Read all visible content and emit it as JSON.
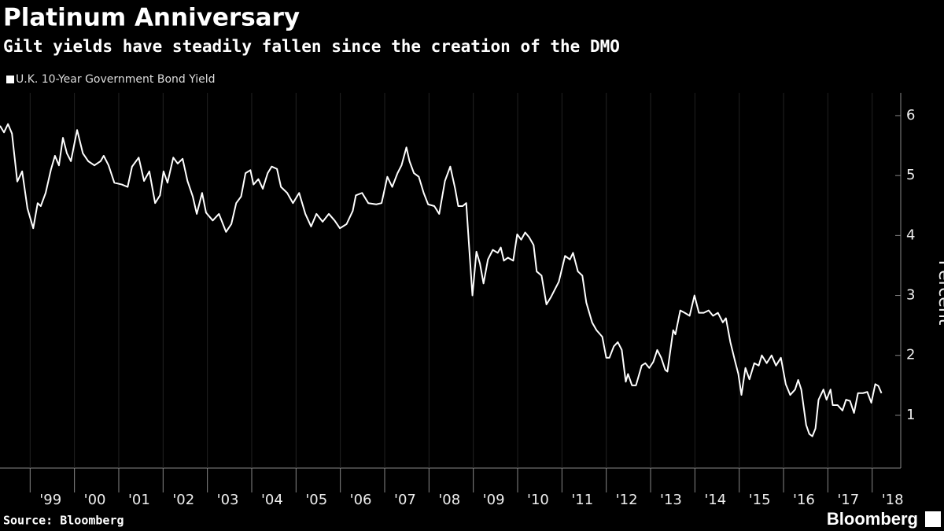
{
  "chart_data": {
    "type": "line",
    "title": "Platinum Anniversary",
    "subtitle": "Gilt yields have steadily fallen since the creation of the DMO",
    "y_label": "Percent",
    "source": "Source: Bloomberg",
    "brand": "Bloomberg",
    "grid": true,
    "xlim": [
      1998.32,
      2018.52
    ],
    "ylim": [
      0.12,
      6.38
    ],
    "yticks": [
      1,
      2,
      3,
      4,
      5,
      6
    ],
    "xticks": [
      {
        "value": 1999,
        "label": "'99"
      },
      {
        "value": 2000,
        "label": "'00"
      },
      {
        "value": 2001,
        "label": "'01"
      },
      {
        "value": 2002,
        "label": "'02"
      },
      {
        "value": 2003,
        "label": "'03"
      },
      {
        "value": 2004,
        "label": "'04"
      },
      {
        "value": 2005,
        "label": "'05"
      },
      {
        "value": 2006,
        "label": "'06"
      },
      {
        "value": 2007,
        "label": "'07"
      },
      {
        "value": 2008,
        "label": "'08"
      },
      {
        "value": 2009,
        "label": "'09"
      },
      {
        "value": 2010,
        "label": "'10"
      },
      {
        "value": 2011,
        "label": "'11"
      },
      {
        "value": 2012,
        "label": "'12"
      },
      {
        "value": 2013,
        "label": "'13"
      },
      {
        "value": 2014,
        "label": "'14"
      },
      {
        "value": 2015,
        "label": "'15"
      },
      {
        "value": 2016,
        "label": "'16"
      },
      {
        "value": 2017,
        "label": "'17"
      },
      {
        "value": 2018,
        "label": "'18"
      }
    ],
    "x": [
      1998.32,
      1998.41,
      1998.5,
      1998.59,
      1998.71,
      1998.82,
      1998.94,
      1999.07,
      1999.17,
      1999.24,
      1999.35,
      1999.47,
      1999.56,
      1999.65,
      1999.74,
      1999.83,
      1999.92,
      2000.06,
      2000.19,
      2000.31,
      2000.45,
      2000.59,
      2000.66,
      2000.77,
      2000.9,
      2001.07,
      2001.2,
      2001.3,
      2001.45,
      2001.57,
      2001.69,
      2001.82,
      2001.93,
      2002.01,
      2002.1,
      2002.23,
      2002.33,
      2002.44,
      2002.55,
      2002.67,
      2002.76,
      2002.88,
      2002.97,
      2003.12,
      2003.26,
      2003.42,
      2003.54,
      2003.65,
      2003.76,
      2003.86,
      2003.97,
      2004.04,
      2004.15,
      2004.25,
      2004.36,
      2004.45,
      2004.57,
      2004.66,
      2004.8,
      2004.93,
      2005.07,
      2005.21,
      2005.34,
      2005.46,
      2005.6,
      2005.74,
      2005.87,
      2005.99,
      2006.14,
      2006.28,
      2006.35,
      2006.49,
      2006.63,
      2006.81,
      2006.93,
      2007.06,
      2007.17,
      2007.29,
      2007.38,
      2007.49,
      2007.56,
      2007.66,
      2007.77,
      2007.88,
      2007.98,
      2008.12,
      2008.23,
      2008.36,
      2008.48,
      2008.59,
      2008.66,
      2008.76,
      2008.84,
      2008.91,
      2008.98,
      2009.07,
      2009.15,
      2009.23,
      2009.33,
      2009.44,
      2009.55,
      2009.62,
      2009.69,
      2009.78,
      2009.9,
      2009.99,
      2010.08,
      2010.17,
      2010.26,
      2010.36,
      2010.43,
      2010.54,
      2010.65,
      2010.75,
      2010.93,
      2011.07,
      2011.18,
      2011.25,
      2011.36,
      2011.46,
      2011.55,
      2011.68,
      2011.78,
      2011.91,
      2012.0,
      2012.07,
      2012.17,
      2012.26,
      2012.35,
      2012.44,
      2012.49,
      2012.58,
      2012.67,
      2012.8,
      2012.88,
      2012.97,
      2013.06,
      2013.15,
      2013.24,
      2013.33,
      2013.38,
      2013.51,
      2013.56,
      2013.67,
      2013.77,
      2013.88,
      2013.99,
      2014.09,
      2014.2,
      2014.31,
      2014.41,
      2014.52,
      2014.63,
      2014.7,
      2014.8,
      2014.91,
      2014.98,
      2015.05,
      2015.14,
      2015.23,
      2015.34,
      2015.44,
      2015.51,
      2015.62,
      2015.73,
      2015.83,
      2015.94,
      2016.05,
      2016.15,
      2016.26,
      2016.33,
      2016.4,
      2016.51,
      2016.58,
      2016.65,
      2016.72,
      2016.79,
      2016.9,
      2016.97,
      2017.06,
      2017.11,
      2017.22,
      2017.33,
      2017.41,
      2017.5,
      2017.59,
      2017.68,
      2017.79,
      2017.89,
      2017.98,
      2018.07,
      2018.14,
      2018.21
    ],
    "series": [
      {
        "name": "U.K. 10-Year Government Bond Yield",
        "color": "#ffffff",
        "values": [
          5.83,
          5.72,
          5.86,
          5.7,
          4.9,
          5.07,
          4.45,
          4.12,
          4.54,
          4.49,
          4.71,
          5.1,
          5.33,
          5.17,
          5.63,
          5.37,
          5.24,
          5.76,
          5.37,
          5.24,
          5.17,
          5.24,
          5.33,
          5.17,
          4.88,
          4.85,
          4.81,
          5.15,
          5.3,
          4.91,
          5.07,
          4.54,
          4.67,
          5.07,
          4.88,
          5.3,
          5.2,
          5.28,
          4.91,
          4.65,
          4.36,
          4.71,
          4.38,
          4.25,
          4.36,
          4.06,
          4.19,
          4.54,
          4.65,
          5.04,
          5.09,
          4.85,
          4.94,
          4.78,
          5.04,
          5.15,
          5.11,
          4.81,
          4.71,
          4.54,
          4.71,
          4.36,
          4.15,
          4.36,
          4.23,
          4.36,
          4.25,
          4.12,
          4.19,
          4.41,
          4.67,
          4.71,
          4.54,
          4.52,
          4.54,
          4.98,
          4.81,
          5.04,
          5.17,
          5.47,
          5.24,
          5.04,
          4.98,
          4.71,
          4.52,
          4.49,
          4.36,
          4.91,
          5.15,
          4.78,
          4.49,
          4.49,
          4.54,
          3.76,
          3.0,
          3.73,
          3.53,
          3.2,
          3.6,
          3.76,
          3.71,
          3.8,
          3.58,
          3.63,
          3.58,
          4.02,
          3.93,
          4.05,
          3.97,
          3.84,
          3.4,
          3.33,
          2.85,
          2.97,
          3.23,
          3.66,
          3.6,
          3.71,
          3.4,
          3.33,
          2.88,
          2.55,
          2.42,
          2.31,
          1.96,
          1.96,
          2.15,
          2.22,
          2.09,
          1.56,
          1.69,
          1.5,
          1.5,
          1.83,
          1.87,
          1.79,
          1.89,
          2.09,
          1.96,
          1.76,
          1.73,
          2.42,
          2.35,
          2.75,
          2.71,
          2.66,
          3.0,
          2.71,
          2.71,
          2.75,
          2.66,
          2.71,
          2.55,
          2.62,
          2.22,
          1.89,
          1.69,
          1.34,
          1.79,
          1.6,
          1.87,
          1.83,
          2.0,
          1.87,
          2.0,
          1.83,
          1.96,
          1.52,
          1.34,
          1.43,
          1.59,
          1.43,
          0.84,
          0.69,
          0.65,
          0.78,
          1.26,
          1.43,
          1.26,
          1.43,
          1.17,
          1.17,
          1.08,
          1.26,
          1.24,
          1.04,
          1.37,
          1.37,
          1.39,
          1.21,
          1.52,
          1.49,
          1.37
        ]
      }
    ]
  }
}
